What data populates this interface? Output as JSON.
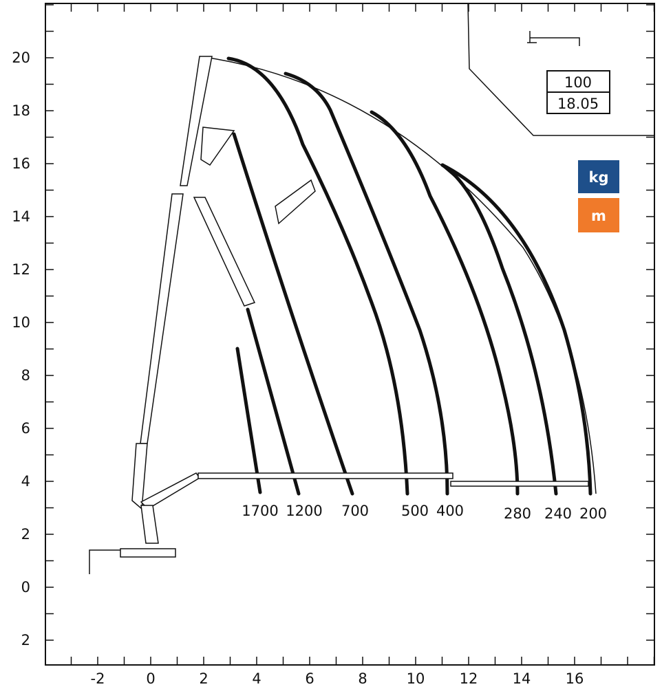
{
  "axes": {
    "x_labels": [
      "-2",
      "0",
      "2",
      "4",
      "6",
      "8",
      "10",
      "12",
      "14",
      "16"
    ],
    "y_labels": [
      "20",
      "18",
      "16",
      "14",
      "12",
      "10",
      "8",
      "6",
      "4",
      "2",
      "0",
      "2"
    ]
  },
  "load_labels": [
    "1700",
    "1200",
    "700",
    "500",
    "400",
    "280",
    "240",
    "200"
  ],
  "info_box": {
    "top": "100",
    "bottom": "18.05"
  },
  "units": {
    "weight": "kg",
    "length": "m"
  }
}
